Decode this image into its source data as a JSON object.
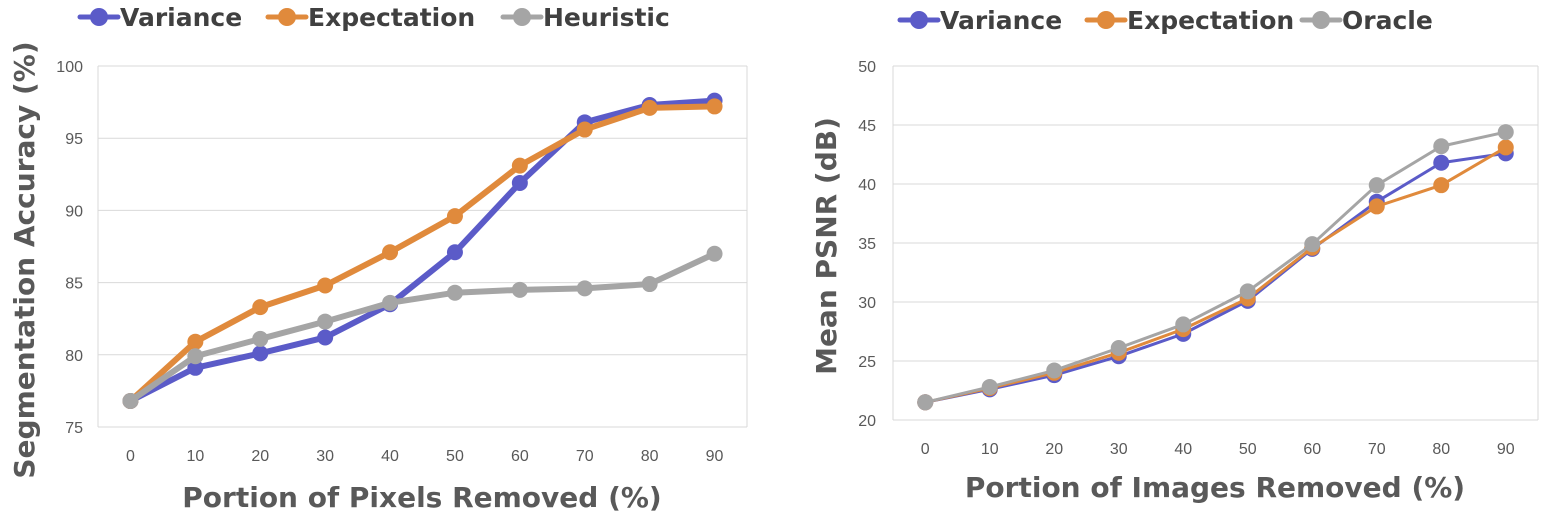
{
  "chart_data": [
    {
      "type": "line",
      "xlabel": "Portion of Pixels Removed (%)",
      "ylabel": "Segmentation Accuracy (%)",
      "x": [
        0,
        10,
        20,
        30,
        40,
        50,
        60,
        70,
        80,
        90
      ],
      "ylim": [
        75,
        100
      ],
      "yticks": [
        75,
        80,
        85,
        90,
        95,
        100
      ],
      "grid": true,
      "legend_position": "top",
      "series": [
        {
          "name": "Variance",
          "color": "#5b5bc8",
          "values": [
            76.8,
            79.1,
            80.1,
            81.2,
            83.5,
            87.1,
            91.9,
            96.1,
            97.3,
            97.6
          ]
        },
        {
          "name": "Expectation",
          "color": "#e08a3c",
          "values": [
            76.8,
            80.9,
            83.3,
            84.8,
            87.1,
            89.6,
            93.1,
            95.6,
            97.1,
            97.2
          ]
        },
        {
          "name": "Heuristic",
          "color": "#a5a5a5",
          "values": [
            76.8,
            79.9,
            81.1,
            82.3,
            83.6,
            84.3,
            84.5,
            84.6,
            84.9,
            87.0
          ]
        }
      ]
    },
    {
      "type": "line",
      "xlabel": "Portion of Images Removed (%)",
      "ylabel": "Mean PSNR (dB)",
      "x": [
        0,
        10,
        20,
        30,
        40,
        50,
        60,
        70,
        80,
        90
      ],
      "ylim": [
        20,
        50
      ],
      "yticks": [
        20,
        25,
        30,
        35,
        40,
        45,
        50
      ],
      "grid": true,
      "legend_position": "top",
      "series": [
        {
          "name": "Variance",
          "color": "#5b5bc8",
          "values": [
            21.5,
            22.6,
            23.8,
            25.4,
            27.3,
            30.1,
            34.5,
            38.5,
            41.8,
            42.6
          ]
        },
        {
          "name": "Expectation",
          "color": "#e08a3c",
          "values": [
            21.5,
            22.7,
            24.0,
            25.7,
            27.7,
            30.3,
            34.6,
            38.1,
            39.9,
            43.1
          ]
        },
        {
          "name": "Oracle",
          "color": "#a5a5a5",
          "values": [
            21.5,
            22.8,
            24.2,
            26.1,
            28.1,
            30.9,
            34.9,
            39.9,
            43.2,
            44.4
          ]
        }
      ]
    }
  ]
}
